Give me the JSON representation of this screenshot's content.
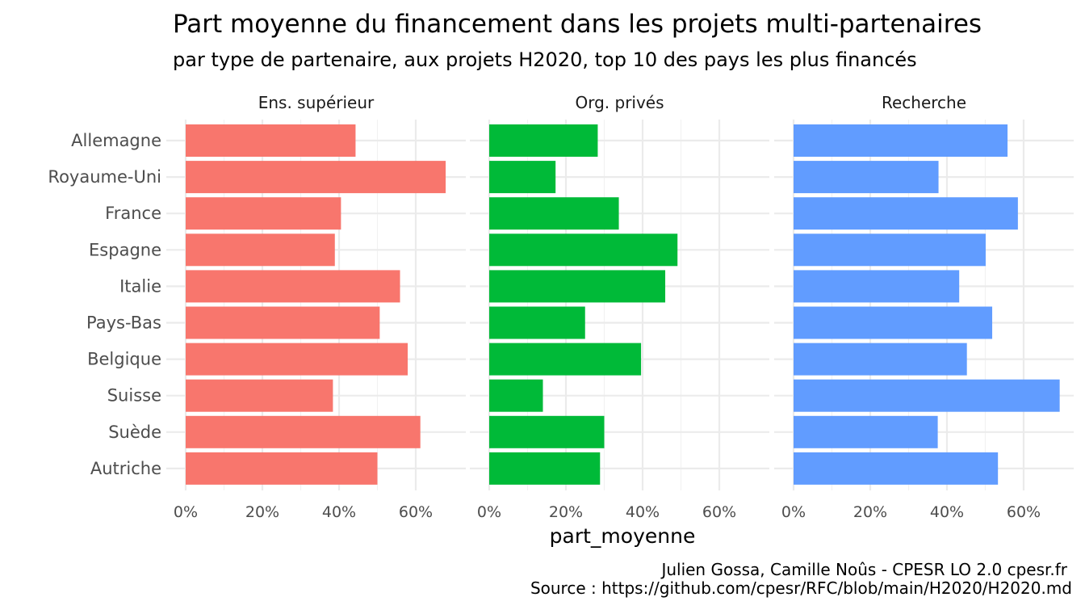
{
  "chart_data": {
    "type": "bar",
    "orientation": "horizontal",
    "title": "Part moyenne du financement dans les projets multi-partenaires",
    "subtitle": "par type de partenaire, aux projets H2020, top 10 des pays les plus financés",
    "xlabel": "part_moyenne",
    "ylabel": "",
    "xlim": [
      0,
      0.7
    ],
    "x_ticks": [
      0,
      0.2,
      0.4,
      0.6
    ],
    "x_tick_labels": [
      "0%",
      "20%",
      "40%",
      "60%"
    ],
    "grid": true,
    "legend": "none",
    "categories": [
      "Allemagne",
      "Royaume-Uni",
      "France",
      "Espagne",
      "Italie",
      "Pays-Bas",
      "Belgique",
      "Suisse",
      "Suède",
      "Autriche"
    ],
    "facets": [
      {
        "label": "Ens. supérieur",
        "color": "#F8766D",
        "values": [
          0.443,
          0.678,
          0.405,
          0.389,
          0.559,
          0.506,
          0.579,
          0.384,
          0.612,
          0.5
        ]
      },
      {
        "label": "Org. privés",
        "color": "#00BA38",
        "values": [
          0.283,
          0.173,
          0.338,
          0.491,
          0.459,
          0.25,
          0.396,
          0.14,
          0.3,
          0.289
        ]
      },
      {
        "label": "Recherche",
        "color": "#619CFF",
        "values": [
          0.558,
          0.378,
          0.585,
          0.501,
          0.432,
          0.518,
          0.452,
          0.694,
          0.376,
          0.533
        ]
      }
    ],
    "caption": [
      "Julien Gossa, Camille Noûs - CPESR LO 2.0 cpesr.fr",
      "Source : https://github.com/cpesr/RFC/blob/main/H2020/H2020.md"
    ]
  }
}
